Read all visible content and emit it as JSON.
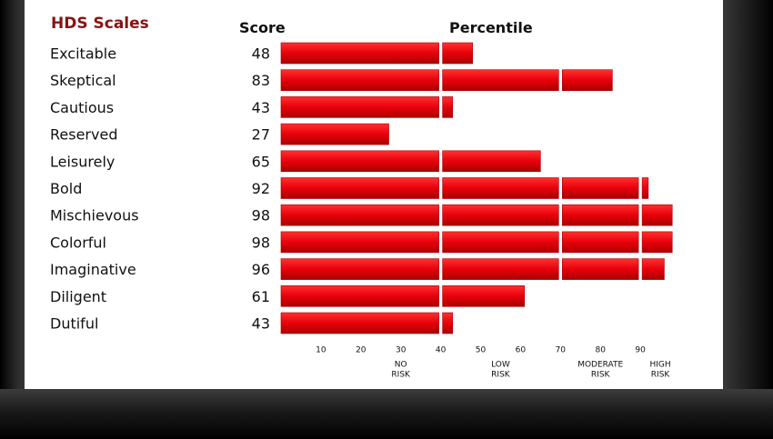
{
  "chart_data": {
    "type": "bar",
    "title": "HDS Scales",
    "score_header": "Score",
    "percentile_header": "Percentile",
    "categories": [
      "Excitable",
      "Skeptical",
      "Cautious",
      "Reserved",
      "Leisurely",
      "Bold",
      "Mischievous",
      "Colorful",
      "Imaginative",
      "Diligent",
      "Dutiful"
    ],
    "values": [
      48,
      83,
      43,
      27,
      65,
      92,
      98,
      98,
      96,
      61,
      43
    ],
    "x_ticks": [
      10,
      20,
      30,
      40,
      50,
      60,
      70,
      80,
      90
    ],
    "segment_breaks": [
      40,
      70,
      90
    ],
    "xlim": [
      0,
      100
    ],
    "bar_color": "#e8000a",
    "risk_zones": [
      {
        "line1": "NO",
        "line2": "RISK"
      },
      {
        "line1": "LOW",
        "line2": "RISK"
      },
      {
        "line1": "MODERATE",
        "line2": "RISK"
      },
      {
        "line1": "HIGH",
        "line2": "RISK"
      }
    ]
  }
}
